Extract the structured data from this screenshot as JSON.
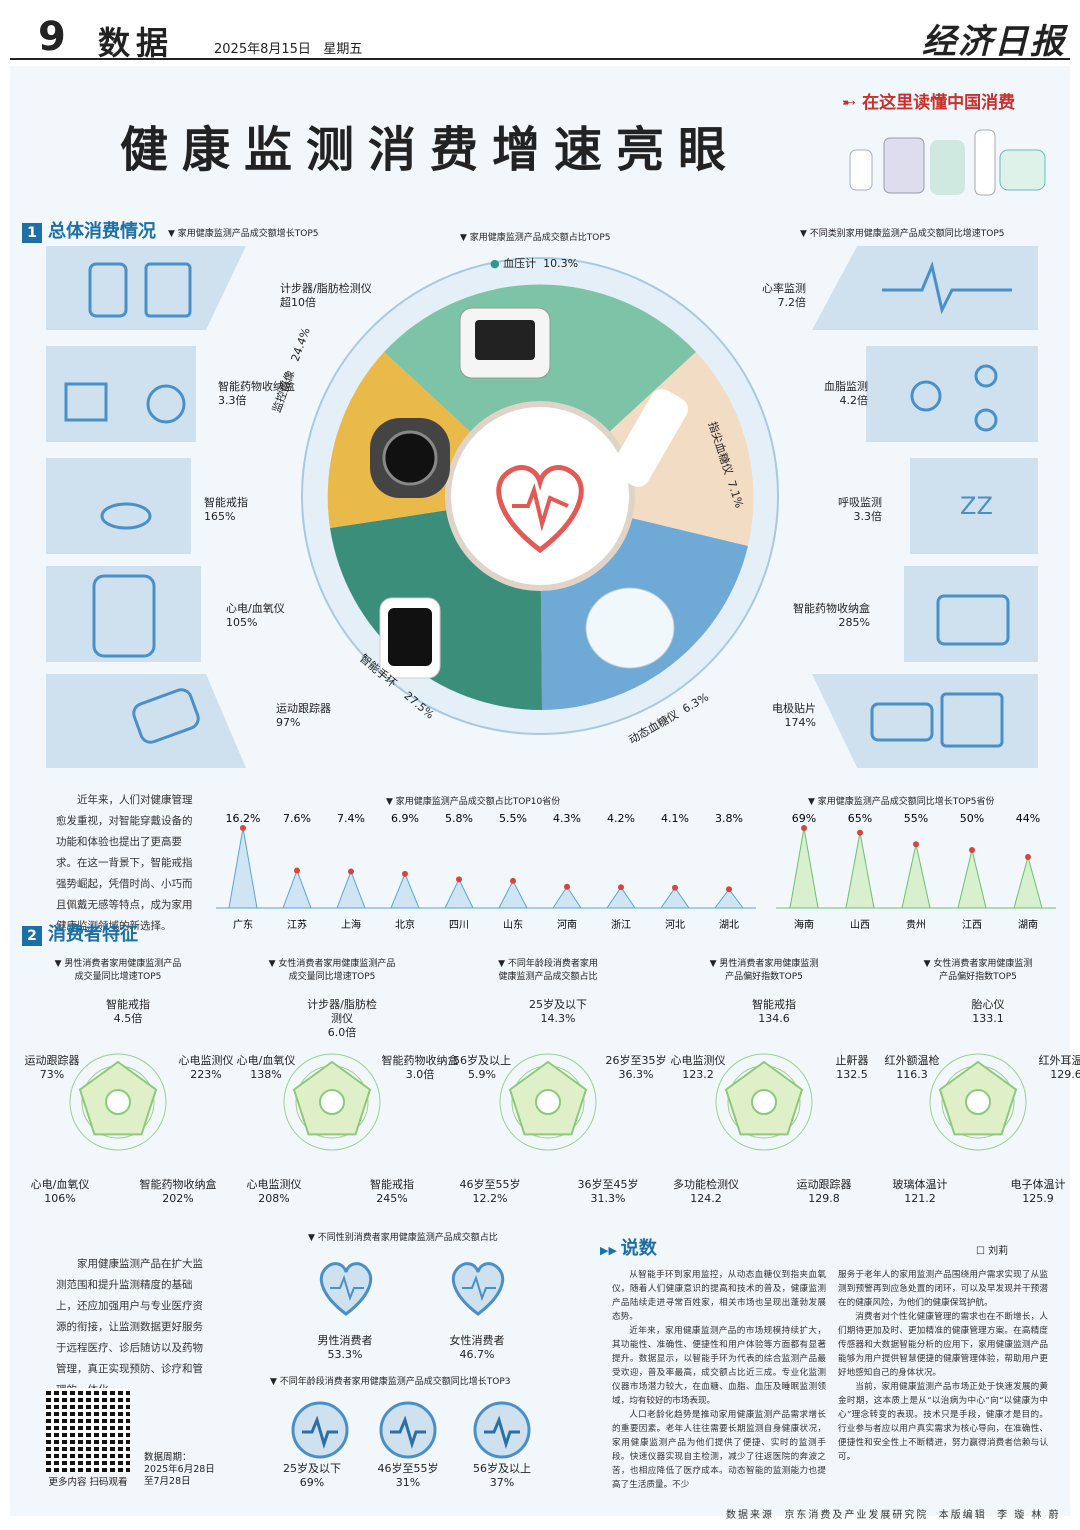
{
  "header": {
    "page_no": "9",
    "section": "数据",
    "date": "2025年8月15日",
    "weekday": "星期五",
    "logo": "经济日报"
  },
  "tagline": "在这里读懂中国消费",
  "title": "健康监测消费增速亮眼",
  "section1": {
    "num": "1",
    "title": "总体消费情况",
    "growth_title": "家用健康监测产品成交额增长TOP5",
    "share_title": "家用健康监测产品成交额占比TOP5",
    "category_title": "不同类别家用健康监测产品成交额同比增速TOP5",
    "growth_items": [
      {
        "name": "计步器/脂肪检测仪",
        "value": "超10倍"
      },
      {
        "name": "智能药物收纳盒",
        "value": "3.3倍"
      },
      {
        "name": "智能戒指",
        "value": "165%"
      },
      {
        "name": "心电/血氧仪",
        "value": "105%"
      },
      {
        "name": "运动跟踪器",
        "value": "97%"
      }
    ],
    "category_items": [
      {
        "name": "心率监测",
        "value": "7.2倍"
      },
      {
        "name": "血脂监测",
        "value": "4.2倍"
      },
      {
        "name": "呼吸监测",
        "value": "3.3倍"
      },
      {
        "name": "智能药物收纳盒",
        "value": "285%"
      },
      {
        "name": "电极贴片",
        "value": "174%"
      }
    ],
    "share_items": [
      {
        "name": "血压计",
        "value": "10.3%"
      },
      {
        "name": "指尖血糖仪",
        "value": "7.1%"
      },
      {
        "name": "动态血糖仪",
        "value": "6.3%"
      },
      {
        "name": "智能手环",
        "value": "27.5%"
      },
      {
        "name": "监控摄像",
        "value": "24.4%"
      }
    ],
    "intro": "近年来，人们对健康管理愈发重视，对智能穿戴设备的功能和体验也提出了更高要求。在这一背景下，智能戒指强势崛起，凭借时尚、小巧而且佩戴无感等特点，成为家用健康监测领域的新选择。"
  },
  "chart_data": [
    {
      "type": "line",
      "title": "家用健康监测产品成交额占比TOP10省份",
      "categories": [
        "广东",
        "江苏",
        "上海",
        "北京",
        "四川",
        "山东",
        "河南",
        "浙江",
        "河北",
        "湖北"
      ],
      "values": [
        16.2,
        7.6,
        7.4,
        6.9,
        5.8,
        5.5,
        4.3,
        4.2,
        4.1,
        3.8
      ],
      "labels": [
        "16.2%",
        "7.6%",
        "7.4%",
        "6.9%",
        "5.8%",
        "5.5%",
        "4.3%",
        "4.2%",
        "4.1%",
        "3.8%"
      ]
    },
    {
      "type": "line",
      "title": "家用健康监测产品成交额同比增长TOP5省份",
      "categories": [
        "海南",
        "山西",
        "贵州",
        "江西",
        "湖南"
      ],
      "values": [
        69,
        65,
        55,
        50,
        44
      ],
      "labels": [
        "69%",
        "65%",
        "55%",
        "50%",
        "44%"
      ]
    }
  ],
  "section2": {
    "num": "2",
    "title": "消费者特征",
    "radars": [
      {
        "title1": "男性消费者家用健康监测产品",
        "title2": "成交量同比增速TOP5",
        "items": [
          {
            "name": "智能戒指",
            "value": "4.5倍"
          },
          {
            "name": "心电监测仪",
            "value": "223%"
          },
          {
            "name": "智能药物收纳盒",
            "value": "202%"
          },
          {
            "name": "心电/血氧仪",
            "value": "106%"
          },
          {
            "name": "运动跟踪器",
            "value": "73%"
          }
        ]
      },
      {
        "title1": "女性消费者家用健康监测产品",
        "title2": "成交量同比增速TOP5",
        "items": [
          {
            "name": "计步器/脂肪检测仪",
            "value": "6.0倍"
          },
          {
            "name": "智能药物收纳盒",
            "value": "3.0倍"
          },
          {
            "name": "智能戒指",
            "value": "245%"
          },
          {
            "name": "心电监测仪",
            "value": "208%"
          },
          {
            "name": "心电/血氧仪",
            "value": "138%"
          }
        ]
      },
      {
        "title1": "不同年龄段消费者家用",
        "title2": "健康监测产品成交额占比",
        "items": [
          {
            "name": "25岁及以下",
            "value": "14.3%"
          },
          {
            "name": "26岁至35岁",
            "value": "36.3%"
          },
          {
            "name": "36岁至45岁",
            "value": "31.3%"
          },
          {
            "name": "46岁至55岁",
            "value": "12.2%"
          },
          {
            "name": "56岁及以上",
            "value": "5.9%"
          }
        ]
      },
      {
        "title1": "男性消费者家用健康监测",
        "title2": "产品偏好指数TOP5",
        "items": [
          {
            "name": "智能戒指",
            "value": "134.6"
          },
          {
            "name": "止鼾器",
            "value": "132.5"
          },
          {
            "name": "运动跟踪器",
            "value": "129.8"
          },
          {
            "name": "多功能检测仪",
            "value": "124.2"
          },
          {
            "name": "心电监测仪",
            "value": "123.2"
          }
        ]
      },
      {
        "title1": "女性消费者家用健康监测",
        "title2": "产品偏好指数TOP5",
        "items": [
          {
            "name": "胎心仪",
            "value": "133.1"
          },
          {
            "name": "红外耳温枪",
            "value": "129.6"
          },
          {
            "name": "电子体温计",
            "value": "125.9"
          },
          {
            "name": "玻璃体温计",
            "value": "121.2"
          },
          {
            "name": "红外额温枪",
            "value": "116.3"
          }
        ]
      }
    ],
    "gender_title": "不同性别消费者家用健康监测产品成交额占比",
    "gender": [
      {
        "name": "男性消费者",
        "value": "53.3%"
      },
      {
        "name": "女性消费者",
        "value": "46.7%"
      }
    ],
    "age_title": "不同年龄段消费者家用健康监测产品成交额同比增长TOP3",
    "age_growth": [
      {
        "name": "25岁及以下",
        "value": "69%"
      },
      {
        "name": "46岁至55岁",
        "value": "31%"
      },
      {
        "name": "56岁及以上",
        "value": "37%"
      }
    ],
    "intro": "家用健康监测产品在扩大监测范围和提升监测精度的基础上，还应加强用户与专业医疗资源的衔接，让监测数据更好服务于远程医疗、诊后随访以及药物管理，真正实现预防、诊疗和管理的一体化。"
  },
  "commentary": {
    "label": "说数",
    "author": "刘莉",
    "p1": "从智能手环到家用监控，从动态血糖仪到指夹血氧仪，随着人们健康意识的提高和技术的普及，健康监测产品陆续走进寻常百姓家，相关市场也呈现出蓬勃发展态势。",
    "p2": "近年来，家用健康监测产品的市场规模持续扩大，其功能性、准确性、便捷性和用户体验等方面都有显著提升。数据显示，以智能手环为代表的综合监测产品最受欢迎，普及率最高，成交额占比近三成。专业化监测仪器市场潜力较大，在血糖、血脂、血压及睡眠监测领域，均有较好的市场表现。",
    "p3": "人口老龄化趋势是推动家用健康监测产品需求增长的重要因素。老年人往往需要长期监测自身健康状况，家用健康监测产品为他们提供了便捷、实时的监测手段。快速仪器实现自主检测，减少了往返医院的奔波之苦，也相应降低了医疗成本。动态智能的监测能力也提高了生活质量。不少",
    "p4": "服务于老年人的家用监测产品围绕用户需求实现了从监测到预警再到应急处置的闭环，可以及早发现并干预潜在的健康风险，为他们的健康保驾护航。",
    "p5": "消费者对个性化健康管理的需求也在不断增长，人们期待更加及时、更加精准的健康管理方案。在高精度传感器和大数据智能分析的应用下，家用健康监测产品能够为用户提供智慧便捷的健康管理体验，帮助用户更好地感知自己的身体状况。",
    "p6": "当前，家用健康监测产品市场正处于快速发展的黄金时期，这本质上是从“以治病为中心”向“以健康为中心”理念转变的表现。技术只是手段，健康才是目的。行业参与者应以用户真实需求为核心导向，在准确性、便捷性和安全性上不断精进，努力赢得消费者信赖与认可。"
  },
  "qr": {
    "caption": "更多内容 扫码观看",
    "period_label": "数据周期：",
    "period": "2025年6月28日至7月28日"
  },
  "footer": {
    "source_label": "数据来源",
    "source": "京东消费及产业发展研究院",
    "editor_label": "本版编辑",
    "editor": "李 璇 林 蔚"
  },
  "colors": {
    "blue": "#1e6fa8",
    "light": "#cfe1ef",
    "green": "#8cc97a",
    "red": "#d9443c"
  }
}
